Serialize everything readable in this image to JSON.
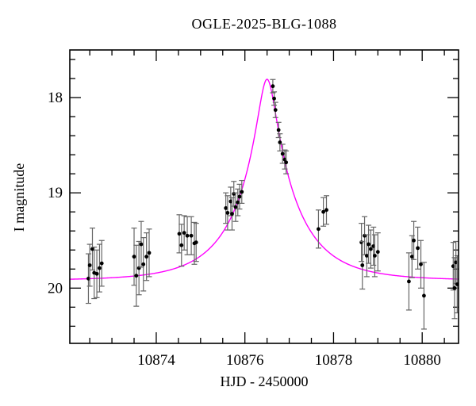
{
  "chart_data": {
    "type": "scatter",
    "title": "OGLE-2025-BLG-1088",
    "xlabel": "HJD - 2450000",
    "ylabel": "I magnitude",
    "x_range": [
      10872.05,
      10880.82
    ],
    "mag_range": [
      17.5,
      20.58
    ],
    "y_axis_inverted": true,
    "grid": false,
    "legend": "none",
    "x_major_ticks": [
      10874,
      10876,
      10878,
      10880
    ],
    "x_minor_step": 0.5,
    "y_major_ticks": [
      18,
      19,
      20
    ],
    "y_minor_step": 0.2,
    "point_color": "#000000",
    "errorbar_color": "#666666",
    "model": {
      "name": "paczynski-microlensing-fit",
      "color": "#ff00ff",
      "t0": 10876.5,
      "tE": 1.35,
      "u0": 0.144,
      "baseline_mag": 19.92,
      "peak_mag": 17.81
    },
    "points": [
      {
        "x": 10872.47,
        "mag": 19.9,
        "err": 0.26
      },
      {
        "x": 10872.5,
        "mag": 19.76,
        "err": 0.22
      },
      {
        "x": 10872.56,
        "mag": 19.59,
        "err": 0.22
      },
      {
        "x": 10872.6,
        "mag": 19.84,
        "err": 0.27
      },
      {
        "x": 10872.66,
        "mag": 19.85,
        "err": 0.25
      },
      {
        "x": 10872.72,
        "mag": 19.79,
        "err": 0.25
      },
      {
        "x": 10872.77,
        "mag": 19.74,
        "err": 0.24
      },
      {
        "x": 10873.5,
        "mag": 19.67,
        "err": 0.3
      },
      {
        "x": 10873.55,
        "mag": 19.87,
        "err": 0.32
      },
      {
        "x": 10873.61,
        "mag": 19.79,
        "err": 0.28
      },
      {
        "x": 10873.66,
        "mag": 19.54,
        "err": 0.24
      },
      {
        "x": 10873.71,
        "mag": 19.75,
        "err": 0.28
      },
      {
        "x": 10873.78,
        "mag": 19.67,
        "err": 0.25
      },
      {
        "x": 10873.84,
        "mag": 19.63,
        "err": 0.25
      },
      {
        "x": 10874.52,
        "mag": 19.43,
        "err": 0.2
      },
      {
        "x": 10874.57,
        "mag": 19.55,
        "err": 0.22
      },
      {
        "x": 10874.63,
        "mag": 19.42,
        "err": 0.18
      },
      {
        "x": 10874.7,
        "mag": 19.45,
        "err": 0.2
      },
      {
        "x": 10874.79,
        "mag": 19.45,
        "err": 0.2
      },
      {
        "x": 10874.86,
        "mag": 19.53,
        "err": 0.22
      },
      {
        "x": 10874.9,
        "mag": 19.52,
        "err": 0.2
      },
      {
        "x": 10875.57,
        "mag": 19.16,
        "err": 0.16
      },
      {
        "x": 10875.61,
        "mag": 19.21,
        "err": 0.18
      },
      {
        "x": 10875.68,
        "mag": 19.09,
        "err": 0.15
      },
      {
        "x": 10875.71,
        "mag": 19.22,
        "err": 0.17
      },
      {
        "x": 10875.75,
        "mag": 19.01,
        "err": 0.13
      },
      {
        "x": 10875.79,
        "mag": 19.15,
        "err": 0.15
      },
      {
        "x": 10875.84,
        "mag": 19.1,
        "err": 0.14
      },
      {
        "x": 10875.88,
        "mag": 19.04,
        "err": 0.13
      },
      {
        "x": 10875.93,
        "mag": 18.99,
        "err": 0.12
      },
      {
        "x": 10876.63,
        "mag": 17.88,
        "err": 0.07
      },
      {
        "x": 10876.66,
        "mag": 18.01,
        "err": 0.07
      },
      {
        "x": 10876.69,
        "mag": 18.13,
        "err": 0.08
      },
      {
        "x": 10876.76,
        "mag": 18.34,
        "err": 0.08
      },
      {
        "x": 10876.79,
        "mag": 18.47,
        "err": 0.09
      },
      {
        "x": 10876.85,
        "mag": 18.59,
        "err": 0.1
      },
      {
        "x": 10876.9,
        "mag": 18.65,
        "err": 0.1
      },
      {
        "x": 10876.93,
        "mag": 18.68,
        "err": 0.12
      },
      {
        "x": 10877.66,
        "mag": 19.38,
        "err": 0.2
      },
      {
        "x": 10877.77,
        "mag": 19.2,
        "err": 0.15
      },
      {
        "x": 10877.84,
        "mag": 19.18,
        "err": 0.15
      },
      {
        "x": 10878.63,
        "mag": 19.52,
        "err": 0.2
      },
      {
        "x": 10878.65,
        "mag": 19.76,
        "err": 0.25
      },
      {
        "x": 10878.7,
        "mag": 19.45,
        "err": 0.2
      },
      {
        "x": 10878.75,
        "mag": 19.66,
        "err": 0.22
      },
      {
        "x": 10878.79,
        "mag": 19.54,
        "err": 0.2
      },
      {
        "x": 10878.84,
        "mag": 19.59,
        "err": 0.2
      },
      {
        "x": 10878.9,
        "mag": 19.56,
        "err": 0.2
      },
      {
        "x": 10878.93,
        "mag": 19.66,
        "err": 0.22
      },
      {
        "x": 10879.0,
        "mag": 19.62,
        "err": 0.2
      },
      {
        "x": 10879.7,
        "mag": 19.93,
        "err": 0.3
      },
      {
        "x": 10879.77,
        "mag": 19.67,
        "err": 0.22
      },
      {
        "x": 10879.81,
        "mag": 19.5,
        "err": 0.2
      },
      {
        "x": 10879.9,
        "mag": 19.58,
        "err": 0.22
      },
      {
        "x": 10879.97,
        "mag": 19.75,
        "err": 0.25
      },
      {
        "x": 10880.04,
        "mag": 20.08,
        "err": 0.35
      },
      {
        "x": 10880.7,
        "mag": 19.77,
        "err": 0.25
      },
      {
        "x": 10880.73,
        "mag": 20.0,
        "err": 0.32
      },
      {
        "x": 10880.76,
        "mag": 19.73,
        "err": 0.22
      },
      {
        "x": 10880.79,
        "mag": 19.96,
        "err": 0.3
      }
    ]
  }
}
